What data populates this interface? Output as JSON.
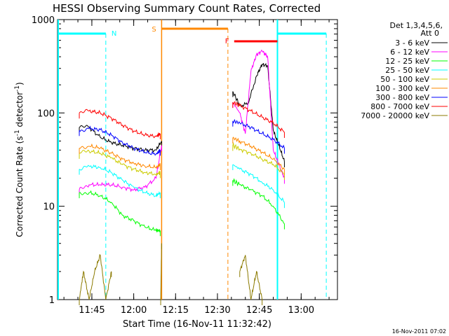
{
  "chart_data": {
    "type": "line",
    "title": "HESSI Observing Summary Count Rates, Corrected",
    "xlabel": "Start Time (16-Nov-11 11:32:42)",
    "ylabel": "Corrected Count Rate (s⁻¹ detector⁻¹)",
    "yscale": "log",
    "ylim": [
      1,
      1000
    ],
    "xlim": [
      "11:32:42",
      "13:13:00"
    ],
    "x_ticks": [
      "11:45",
      "12:00",
      "12:15",
      "12:30",
      "12:45",
      "13:00"
    ],
    "y_ticks": [
      "1",
      "10",
      "100",
      "1000"
    ],
    "legend_position": "right",
    "legend_header": [
      "Det 1,3,4,5,6,",
      "Att 0"
    ],
    "footer": "16-Nov-2011 07:02",
    "series": [
      {
        "name": "3 - 6 keV",
        "color": "#000000",
        "x": [
          "11:40:30",
          "11:44:00",
          "11:48:00",
          "11:52:00",
          "11:56:00",
          "12:00:00",
          "12:04:00",
          "12:08:00",
          "12:10:00",
          "12:35:30",
          "12:38:00",
          "12:41:00",
          "12:44:00",
          "12:46:00",
          "12:48:00",
          "12:50:00",
          "12:52:00",
          "12:54:00"
        ],
        "values": [
          70,
          70,
          55,
          48,
          45,
          42,
          40,
          40,
          50,
          170,
          120,
          125,
          250,
          330,
          320,
          65,
          45,
          30
        ]
      },
      {
        "name": "6 - 12 keV",
        "color": "#ff00ff",
        "x": [
          "11:40:30",
          "11:44:00",
          "11:48:00",
          "11:52:00",
          "11:56:00",
          "12:00:00",
          "12:04:00",
          "12:08:00",
          "12:10:00",
          "12:35:30",
          "12:38:00",
          "12:40:00",
          "12:42:00",
          "12:44:00",
          "12:46:00",
          "12:48:00",
          "12:50:00",
          "12:52:00",
          "12:54:00"
        ],
        "values": [
          15,
          17,
          17,
          17,
          16,
          15,
          16,
          20,
          45,
          130,
          100,
          60,
          280,
          420,
          460,
          400,
          40,
          28,
          20
        ]
      },
      {
        "name": "12 - 25 keV",
        "color": "#00ff00",
        "x": [
          "11:40:30",
          "11:44:00",
          "11:48:00",
          "11:52:00",
          "11:56:00",
          "12:00:00",
          "12:04:00",
          "12:08:00",
          "12:09:30",
          "12:35:30",
          "12:38:00",
          "12:42:00",
          "12:46:00",
          "12:50:00",
          "12:54:00"
        ],
        "values": [
          14,
          14,
          13,
          11,
          8,
          7,
          6,
          5.5,
          5.5,
          19,
          17,
          15,
          13,
          10,
          6.5
        ]
      },
      {
        "name": "25 - 50 keV",
        "color": "#00ffff",
        "x": [
          "11:40:30",
          "11:44:00",
          "11:48:00",
          "11:52:00",
          "11:56:00",
          "12:00:00",
          "12:04:00",
          "12:08:00",
          "12:09:30",
          "12:35:30",
          "12:38:00",
          "12:42:00",
          "12:46:00",
          "12:50:00",
          "12:54:00"
        ],
        "values": [
          25,
          27,
          26,
          23,
          19,
          16,
          14,
          13,
          14,
          28,
          25,
          22,
          18,
          15,
          11
        ]
      },
      {
        "name": "50 - 100 keV",
        "color": "#cccc00",
        "x": [
          "11:40:30",
          "11:44:00",
          "11:48:00",
          "11:52:00",
          "11:56:00",
          "12:00:00",
          "12:04:00",
          "12:08:00",
          "12:09:30",
          "12:35:30",
          "12:38:00",
          "12:42:00",
          "12:46:00",
          "12:50:00",
          "12:54:00"
        ],
        "values": [
          37,
          39,
          37,
          33,
          28,
          25,
          23,
          22,
          23,
          45,
          41,
          37,
          32,
          28,
          22
        ]
      },
      {
        "name": "100 - 300 keV",
        "color": "#ff8800",
        "x": [
          "11:40:30",
          "11:44:00",
          "11:48:00",
          "11:52:00",
          "11:56:00",
          "12:00:00",
          "12:04:00",
          "12:08:00",
          "12:09:30",
          "12:35:30",
          "12:38:00",
          "12:42:00",
          "12:46:00",
          "12:50:00",
          "12:54:00"
        ],
        "values": [
          42,
          44,
          42,
          37,
          32,
          29,
          27,
          26,
          28,
          54,
          50,
          44,
          38,
          32,
          25
        ]
      },
      {
        "name": "300 - 800 keV",
        "color": "#0000ff",
        "x": [
          "11:40:30",
          "11:44:00",
          "11:48:00",
          "11:52:00",
          "11:56:00",
          "12:00:00",
          "12:04:00",
          "12:08:00",
          "12:09:30",
          "12:35:30",
          "12:38:00",
          "12:42:00",
          "12:46:00",
          "12:50:00",
          "12:54:00"
        ],
        "values": [
          65,
          68,
          66,
          58,
          48,
          42,
          38,
          36,
          40,
          82,
          78,
          70,
          60,
          52,
          42
        ]
      },
      {
        "name": "800 - 7000 keV",
        "color": "#ff0000",
        "x": [
          "11:40:30",
          "11:44:00",
          "11:48:00",
          "11:52:00",
          "11:56:00",
          "12:00:00",
          "12:04:00",
          "12:08:00",
          "12:09:30",
          "12:35:30",
          "12:38:00",
          "12:42:00",
          "12:46:00",
          "12:50:00",
          "12:54:00"
        ],
        "values": [
          100,
          105,
          100,
          88,
          74,
          64,
          58,
          56,
          60,
          130,
          120,
          105,
          90,
          78,
          62
        ]
      },
      {
        "name": "7000 - 20000 keV",
        "color": "#8b7a00",
        "x": [
          "11:40:30",
          "11:42:00",
          "11:44:00",
          "11:46:00",
          "11:48:00",
          "11:50:00",
          "11:52:00",
          "12:09:40",
          "12:10:00",
          "12:38:00",
          "12:40:00",
          "12:42:00",
          "12:44:00",
          "12:46:00"
        ],
        "values": [
          1,
          2,
          1,
          2,
          3,
          1,
          2,
          1,
          4,
          2,
          3,
          1,
          2,
          1
        ]
      }
    ],
    "annotations": [
      {
        "text": "N",
        "color": "#00ffff"
      },
      {
        "text": "S",
        "color": "#ff8800"
      },
      {
        "text": "F",
        "color": "#ff0000"
      }
    ]
  }
}
